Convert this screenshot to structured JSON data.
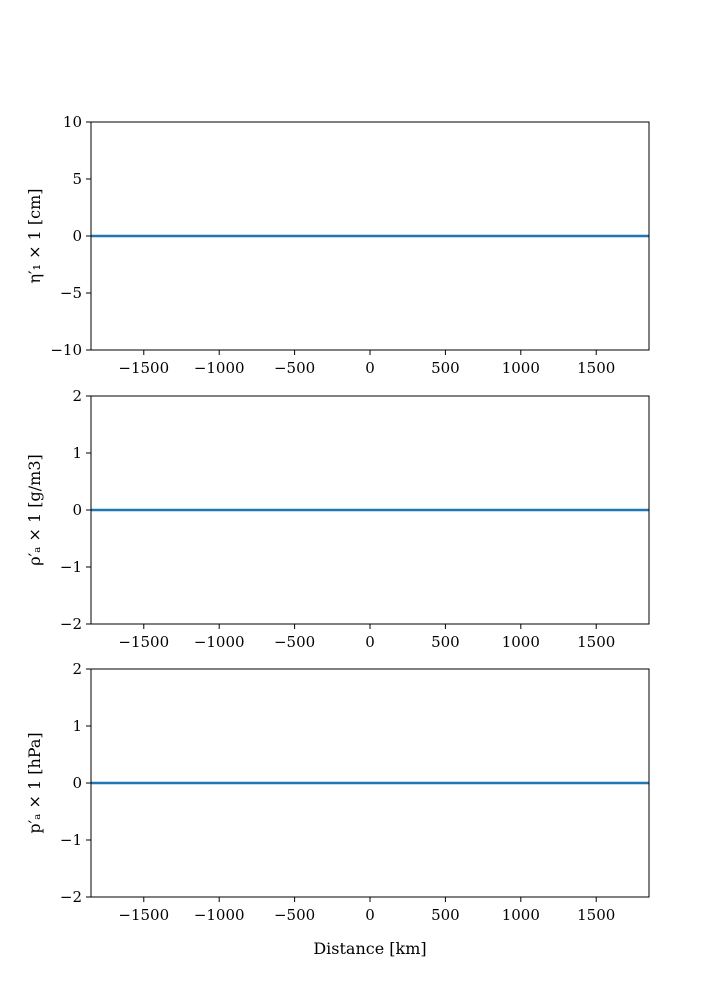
{
  "chart_data": [
    {
      "type": "line",
      "ylabel": "η′₁ × 1  [cm]",
      "xlabel": "",
      "xlim": [
        -1850,
        1850
      ],
      "ylim": [
        -10,
        10
      ],
      "xticks": [
        -1500,
        -1000,
        -500,
        0,
        500,
        1000,
        1500
      ],
      "xtick_labels": [
        "−1500",
        "−1000",
        "−500",
        "0",
        "500",
        "1000",
        "1500"
      ],
      "yticks": [
        -10,
        -5,
        0,
        5,
        10
      ],
      "ytick_labels": [
        "−10",
        "−5",
        "0",
        "5",
        "10"
      ],
      "grid": false,
      "series": [
        {
          "color": "#1f77b4",
          "x": [
            -1850,
            1850
          ],
          "y": [
            0,
            0
          ]
        }
      ]
    },
    {
      "type": "line",
      "ylabel": "ρ′ₐ × 1  [g/m3]",
      "xlabel": "",
      "xlim": [
        -1850,
        1850
      ],
      "ylim": [
        -2,
        2
      ],
      "xticks": [
        -1500,
        -1000,
        -500,
        0,
        500,
        1000,
        1500
      ],
      "xtick_labels": [
        "−1500",
        "−1000",
        "−500",
        "0",
        "500",
        "1000",
        "1500"
      ],
      "yticks": [
        -2,
        -1,
        0,
        1,
        2
      ],
      "ytick_labels": [
        "−2",
        "−1",
        "0",
        "1",
        "2"
      ],
      "grid": false,
      "series": [
        {
          "color": "#1f77b4",
          "x": [
            -1850,
            1850
          ],
          "y": [
            0,
            0
          ]
        }
      ]
    },
    {
      "type": "line",
      "ylabel": "p′ₐ × 1 [hPa]",
      "xlabel": "Distance [km]",
      "xlim": [
        -1850,
        1850
      ],
      "ylim": [
        -2,
        2
      ],
      "xticks": [
        -1500,
        -1000,
        -500,
        0,
        500,
        1000,
        1500
      ],
      "xtick_labels": [
        "−1500",
        "−1000",
        "−500",
        "0",
        "500",
        "1000",
        "1500"
      ],
      "yticks": [
        -2,
        -1,
        0,
        1,
        2
      ],
      "ytick_labels": [
        "−2",
        "−1",
        "0",
        "1",
        "2"
      ],
      "grid": false,
      "series": [
        {
          "color": "#1f77b4",
          "x": [
            -1850,
            1850
          ],
          "y": [
            0,
            0
          ]
        }
      ]
    }
  ]
}
